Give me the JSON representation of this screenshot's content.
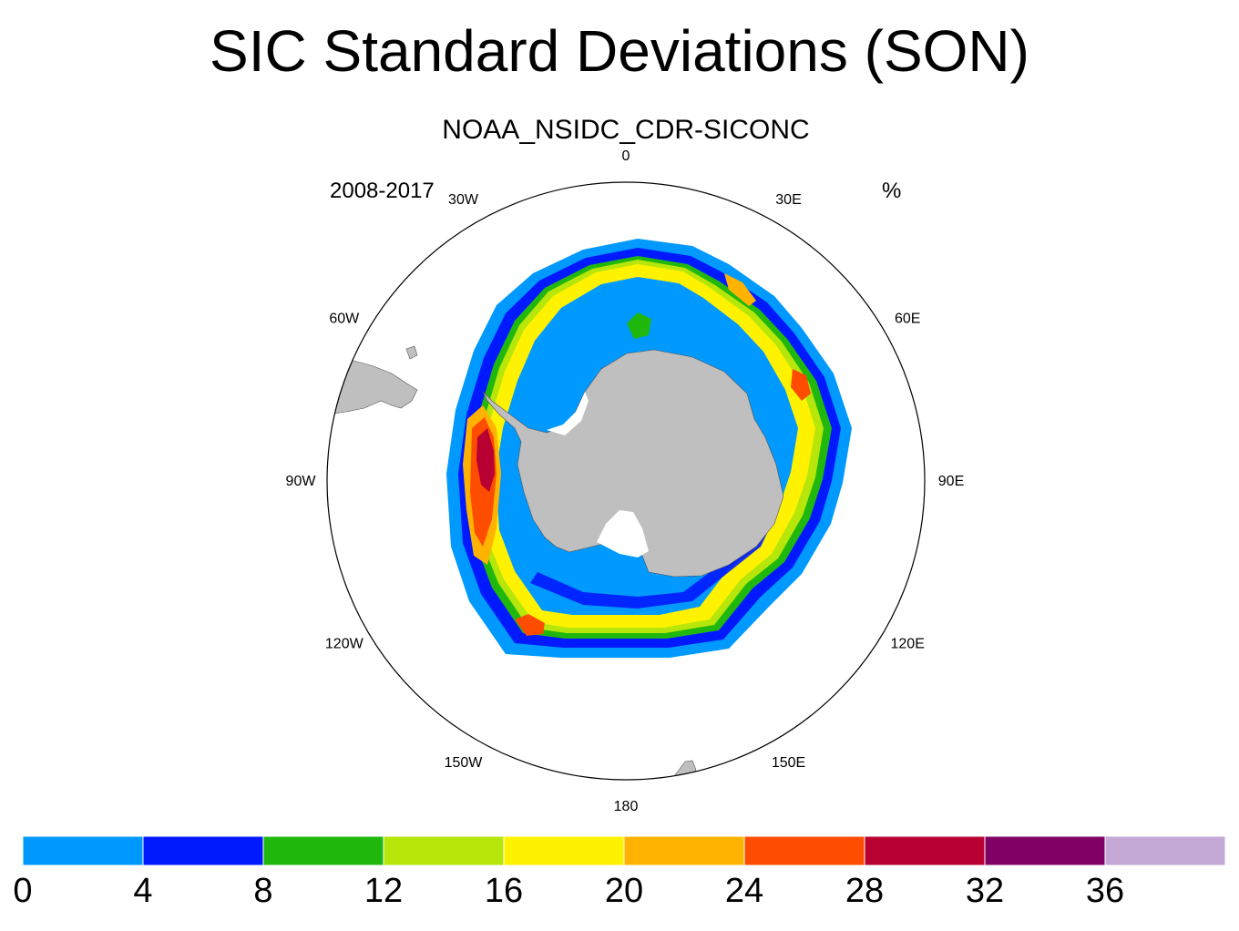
{
  "title": "SIC Standard Deviations (SON)",
  "subtitle": "NOAA_NSIDC_CDR-SICONC",
  "left_label": "2008-2017",
  "right_label": "%",
  "map": {
    "projection": "polar-stereographic-south",
    "land_color": "#bfbfbf",
    "frame_color": "#000000",
    "longitude_labels": [
      {
        "text": "0",
        "lon": 0
      },
      {
        "text": "30E",
        "lon": 30
      },
      {
        "text": "60E",
        "lon": 60
      },
      {
        "text": "90E",
        "lon": 90
      },
      {
        "text": "120E",
        "lon": 120
      },
      {
        "text": "150E",
        "lon": 150
      },
      {
        "text": "180",
        "lon": 180
      },
      {
        "text": "150W",
        "lon": -150
      },
      {
        "text": "120W",
        "lon": -120
      },
      {
        "text": "90W",
        "lon": -90
      },
      {
        "text": "60W",
        "lon": -60
      },
      {
        "text": "30W",
        "lon": -30
      }
    ]
  },
  "colorbar": {
    "labels": [
      "0",
      "4",
      "8",
      "12",
      "16",
      "20",
      "24",
      "28",
      "32",
      "36"
    ],
    "colors": [
      "#0099ff",
      "#0019ff",
      "#21b80e",
      "#b7e60a",
      "#fff200",
      "#ffb300",
      "#ff4d00",
      "#b80033",
      "#800066",
      "#c4a8d6"
    ]
  }
}
